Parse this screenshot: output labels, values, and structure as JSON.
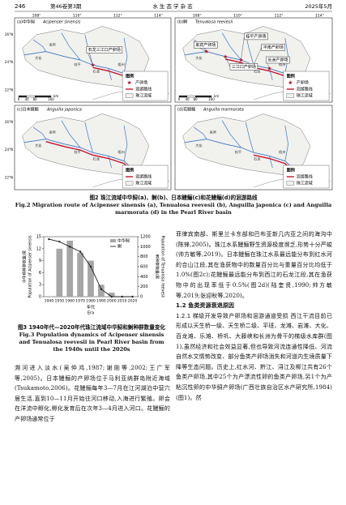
{
  "header": {
    "page": "246",
    "volume": "第46卷第3期",
    "journal": "水 生 态 学 杂 志",
    "date": "2025年5月"
  },
  "figure2": {
    "lon_ticks": [
      "108°",
      "110°",
      "112°",
      "114°"
    ],
    "lat_ticks": [
      "26°N",
      "24°N",
      "22°N"
    ],
    "places": [
      "大化",
      "来宾",
      "石龙",
      "桂平",
      "梧州",
      "广州"
    ],
    "panels": [
      {
        "label": "(a)中华鲟",
        "species": "Acipenser sinensis",
        "spawning": [
          "石龙三江口产卵场"
        ],
        "legend": [
          "图例",
          "产卵场",
          "洄游路线",
          "珠江流域"
        ],
        "scale": [
          "0",
          "40",
          "80",
          "160",
          "km"
        ]
      },
      {
        "label": "(b)鲥",
        "species": "Tenualosa reevesii",
        "spawning": [
          "桂平产卵场",
          "来宾产卵场",
          "平南产卵场",
          "三江口产卵场",
          "长洲产卵场"
        ],
        "legend": [
          "图例",
          "产卵场",
          "洄游路线",
          "珠江流域"
        ],
        "scale": [
          "0",
          "40",
          "80",
          "160",
          "km"
        ]
      },
      {
        "label": "(c)日本鳗鲡",
        "species": "Anguilla japonica",
        "legend": [
          "图例",
          "洄游路线",
          "珠江流域"
        ]
      },
      {
        "label": "(d)花鳗鲡",
        "species": "Anguilla marmorata",
        "legend": [
          "图例",
          "洄游路线",
          "珠江流域"
        ]
      }
    ],
    "caption_cn": "图2  珠江流域中华鲟(a)、鲥(b)、日本鳗鲡(c)和花鳗鲡(d)的洄游路线",
    "caption_en": "Fig.2  Migration route of Acipenser sinensis (a), Tenualosa reevesii (b), Anguilla japonica (c) and Anguilla marmorata (d) in the Pearl River basin"
  },
  "chart_data": {
    "type": "combo",
    "categories": [
      1940,
      1950,
      1960,
      1970,
      1980,
      1990,
      2000,
      2010,
      2020
    ],
    "series": [
      {
        "name": "中华鲟",
        "type": "bar",
        "color": "#a6a6a6",
        "values": [
          0,
          12,
          14,
          11,
          9,
          3,
          1,
          0,
          0
        ]
      },
      {
        "name": "鲥",
        "type": "line",
        "color": "#222222",
        "axis": "y2",
        "values": [
          1150,
          1100,
          1000,
          900,
          600,
          150,
          0,
          0,
          0
        ]
      }
    ],
    "ylim": [
      0,
      15
    ],
    "yticks": [
      0,
      3,
      6,
      9,
      12,
      15
    ],
    "y2lim": [
      0,
      1200
    ],
    "y2ticks": [
      0,
      200,
      400,
      600,
      800,
      1000,
      1200
    ],
    "ylabel": [
      "中华鲟种群数量/尾",
      "Population of Acipenser sinensis"
    ],
    "y2label": [
      "鲥种群数量/尾",
      "Population of Tenualosa reevesii"
    ],
    "xlabel": [
      "年代",
      "Era"
    ],
    "legend": "upper right"
  },
  "figure3": {
    "caption_cn": "图3  1940年代—2020年代珠江流域中华鲟和鲥种群数量变化",
    "caption_en": "Fig.3  Population dynamics of Acipenser sinensis and Tenualosa reevesii in Pearl River basin from the 1940s until the 2020s"
  },
  "body": {
    "left": "溯河进入淡水(吴仲鸿,1987;谢刚等,2002;王广军等,2005)。日本鳗鲡的产卵场位于马利亚纳群岛附近海域(Tsukamoto,2006)。花鳗鲡每年3—7月在江河湖泊中营穴居生活,直到10—11月开始往河口移动,入海进行繁殖。卵会在洋流中孵化,孵化发育后在次年3—4月进入河口。花鳗鲡的产卵场通常位于",
    "right_para1": "菲律宾南部、斯里兰卡东部和巴布亚新几内亚之间的海沟中(陈锋,2005)。珠江水系鳗鲡野生资源极度濒乏,形势十分严峻(帅方敏等,2019)。日本鳗鲡在珠江水系最远能分布到红水河的合山江段,其在渔获物中的数量百分比与重量百分比均低于1.0%(图2c);花鳗鲡最远能分布到西江的石龙江段,其在渔获物中的出现率低于0.5%(图2d)(陆奎贤,1990;帅方敏等,2019;张迎秋等,2020)。",
    "heading": "1.2  鱼类资源衰退原因",
    "subheading": "1.2.1  梯级开发导致产卵场和洄游通道受损",
    "right_para2": "西江干流目前已形成以天生桥一级、天生桥二级、平班、龙滩、岩滩、大化、百龙滩、乐滩、桥巩、大藤峡和长洲为骨干的梯级水库群(图1),虽然经济和社会效益显著,但也导致河流连通性降低、河流自然水文情势改变、部分鱼类产卵场消失和河道内生境质量下降等生态问题。历史上,红水河、黔江、浔江及柳江共有26个鱼类产卵场,其中25个为产漂流性卵的鱼类产卵场,另1个为产粘沉性卵的中华鲟产卵场(广西壮族自治区水产研究所,1984)(图1)。然"
  }
}
